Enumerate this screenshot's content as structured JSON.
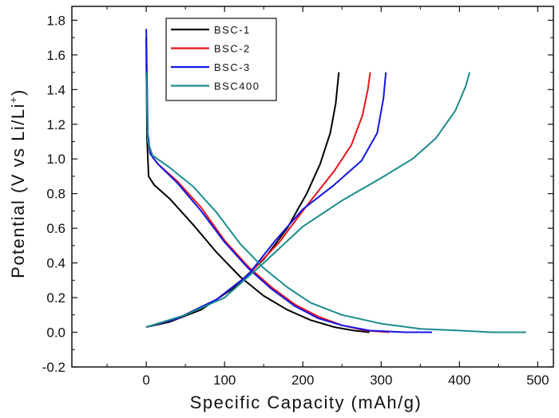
{
  "chart_data": {
    "type": "line",
    "xlabel": "Specific Capacity (mAh/g)",
    "ylabel": "Potential (V vs Li/Li+)",
    "xlim": [
      -95,
      520
    ],
    "ylim": [
      -0.2,
      1.88
    ],
    "xticks": [
      "0",
      "100",
      "200",
      "300",
      "400",
      "500"
    ],
    "yticks": [
      "-0.2",
      "0.0",
      "0.2",
      "0.4",
      "0.6",
      "0.8",
      "1.0",
      "1.2",
      "1.4",
      "1.6",
      "1.8"
    ],
    "legend_position": "top-left",
    "series": [
      {
        "name": "BSC-1",
        "color": "#000000",
        "discharge": [
          [
            0,
            1.7
          ],
          [
            1,
            1.12
          ],
          [
            3,
            0.9
          ],
          [
            10,
            0.85
          ],
          [
            30,
            0.77
          ],
          [
            60,
            0.62
          ],
          [
            90,
            0.46
          ],
          [
            120,
            0.32
          ],
          [
            150,
            0.21
          ],
          [
            180,
            0.13
          ],
          [
            210,
            0.07
          ],
          [
            240,
            0.03
          ],
          [
            265,
            0.01
          ],
          [
            285,
            0.0
          ]
        ],
        "charge": [
          [
            0,
            0.03
          ],
          [
            30,
            0.06
          ],
          [
            70,
            0.13
          ],
          [
            110,
            0.25
          ],
          [
            150,
            0.42
          ],
          [
            180,
            0.6
          ],
          [
            205,
            0.8
          ],
          [
            222,
            0.97
          ],
          [
            235,
            1.15
          ],
          [
            242,
            1.32
          ],
          [
            246,
            1.5
          ]
        ]
      },
      {
        "name": "BSC-2",
        "color": "#e8141c",
        "discharge": [
          [
            0,
            1.55
          ],
          [
            2,
            1.12
          ],
          [
            5,
            1.03
          ],
          [
            15,
            0.97
          ],
          [
            40,
            0.87
          ],
          [
            70,
            0.72
          ],
          [
            100,
            0.53
          ],
          [
            130,
            0.38
          ],
          [
            160,
            0.26
          ],
          [
            190,
            0.16
          ],
          [
            220,
            0.09
          ],
          [
            250,
            0.04
          ],
          [
            280,
            0.01
          ],
          [
            310,
            0.0
          ]
        ],
        "charge": [
          [
            0,
            0.03
          ],
          [
            40,
            0.08
          ],
          [
            90,
            0.19
          ],
          [
            130,
            0.33
          ],
          [
            170,
            0.52
          ],
          [
            205,
            0.73
          ],
          [
            240,
            0.93
          ],
          [
            262,
            1.08
          ],
          [
            276,
            1.25
          ],
          [
            283,
            1.4
          ],
          [
            286,
            1.5
          ]
        ]
      },
      {
        "name": "BSC-3",
        "color": "#1414e8",
        "discharge": [
          [
            0,
            1.75
          ],
          [
            2,
            1.15
          ],
          [
            5,
            1.03
          ],
          [
            15,
            0.97
          ],
          [
            40,
            0.86
          ],
          [
            70,
            0.7
          ],
          [
            100,
            0.52
          ],
          [
            130,
            0.37
          ],
          [
            160,
            0.25
          ],
          [
            190,
            0.15
          ],
          [
            220,
            0.08
          ],
          [
            250,
            0.04
          ],
          [
            285,
            0.01
          ],
          [
            330,
            0.0
          ],
          [
            365,
            0.0
          ]
        ],
        "charge": [
          [
            0,
            0.03
          ],
          [
            40,
            0.08
          ],
          [
            90,
            0.19
          ],
          [
            130,
            0.33
          ],
          [
            165,
            0.53
          ],
          [
            200,
            0.71
          ],
          [
            240,
            0.85
          ],
          [
            275,
            0.99
          ],
          [
            295,
            1.15
          ],
          [
            303,
            1.35
          ],
          [
            306,
            1.5
          ]
        ]
      },
      {
        "name": "BSC400",
        "color": "#1a8c8c",
        "discharge": [
          [
            0,
            1.5
          ],
          [
            2,
            1.1
          ],
          [
            8,
            1.02
          ],
          [
            30,
            0.95
          ],
          [
            60,
            0.84
          ],
          [
            90,
            0.69
          ],
          [
            120,
            0.51
          ],
          [
            150,
            0.37
          ],
          [
            180,
            0.26
          ],
          [
            210,
            0.17
          ],
          [
            250,
            0.1
          ],
          [
            300,
            0.05
          ],
          [
            350,
            0.02
          ],
          [
            400,
            0.01
          ],
          [
            440,
            0.0
          ],
          [
            485,
            0.0
          ]
        ],
        "charge": [
          [
            0,
            0.03
          ],
          [
            50,
            0.1
          ],
          [
            100,
            0.2
          ],
          [
            150,
            0.4
          ],
          [
            200,
            0.61
          ],
          [
            250,
            0.76
          ],
          [
            300,
            0.89
          ],
          [
            340,
            1.0
          ],
          [
            370,
            1.12
          ],
          [
            395,
            1.28
          ],
          [
            408,
            1.42
          ],
          [
            413,
            1.5
          ]
        ]
      }
    ]
  }
}
